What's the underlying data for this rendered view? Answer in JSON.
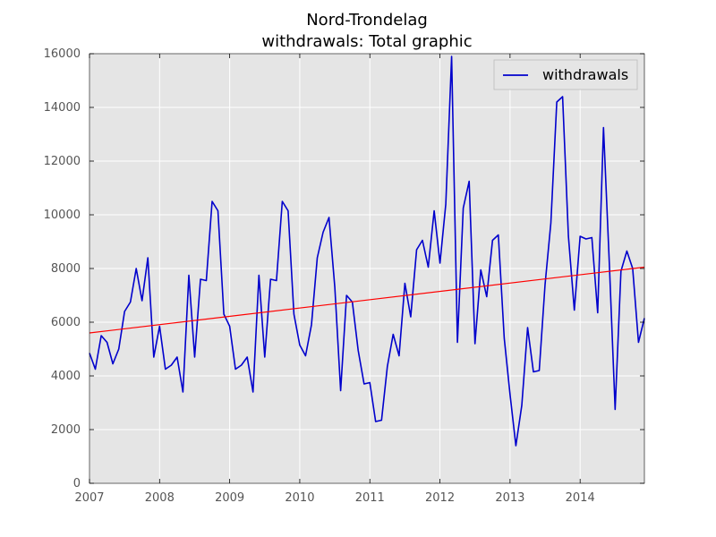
{
  "chart_data": {
    "type": "line",
    "title": "Nord-Trondelag",
    "subtitle": "withdrawals: Total graphic",
    "xlabel": "",
    "ylabel": "",
    "xlim": [
      2007.0,
      2014.917
    ],
    "ylim": [
      0,
      16000
    ],
    "x_ticks": [
      2007,
      2008,
      2009,
      2010,
      2011,
      2012,
      2013,
      2014
    ],
    "y_ticks": [
      0,
      2000,
      4000,
      6000,
      8000,
      10000,
      12000,
      14000,
      16000
    ],
    "grid": true,
    "background": "#e5e5e5",
    "legend": {
      "placement": "top-right",
      "entries": [
        "withdrawals"
      ]
    },
    "series": [
      {
        "name": "withdrawals",
        "color": "#0000cc",
        "x": [
          2007.0,
          2007.083,
          2007.167,
          2007.25,
          2007.333,
          2007.417,
          2007.5,
          2007.583,
          2007.667,
          2007.75,
          2007.833,
          2007.917,
          2008.0,
          2008.083,
          2008.167,
          2008.25,
          2008.333,
          2008.417,
          2008.5,
          2008.583,
          2008.667,
          2008.75,
          2008.833,
          2008.917,
          2009.0,
          2009.083,
          2009.167,
          2009.25,
          2009.333,
          2009.417,
          2009.5,
          2009.583,
          2009.667,
          2009.75,
          2009.833,
          2009.917,
          2010.0,
          2010.083,
          2010.167,
          2010.25,
          2010.333,
          2010.417,
          2010.5,
          2010.583,
          2010.667,
          2010.75,
          2010.833,
          2010.917,
          2011.0,
          2011.083,
          2011.167,
          2011.25,
          2011.333,
          2011.417,
          2011.5,
          2011.583,
          2011.667,
          2011.75,
          2011.833,
          2011.917,
          2012.0,
          2012.083,
          2012.167,
          2012.25,
          2012.333,
          2012.417,
          2012.5,
          2012.583,
          2012.667,
          2012.75,
          2012.833,
          2012.917,
          2013.0,
          2013.083,
          2013.167,
          2013.25,
          2013.333,
          2013.417,
          2013.5,
          2013.583,
          2013.667,
          2013.75,
          2013.833,
          2013.917,
          2014.0,
          2014.083,
          2014.167,
          2014.25,
          2014.333,
          2014.417,
          2014.5,
          2014.583,
          2014.667,
          2014.75,
          2014.833,
          2014.917
        ],
        "y": [
          4850,
          4250,
          5500,
          5250,
          4450,
          5000,
          6400,
          6750,
          8000,
          6800,
          8400,
          4700,
          5850,
          4250,
          4400,
          4700,
          3400,
          7750,
          4700,
          7600,
          7550,
          10500,
          10150,
          6300,
          5850,
          4250,
          4400,
          4700,
          3400,
          7750,
          4700,
          7600,
          7550,
          10500,
          10150,
          6300,
          5150,
          4750,
          5900,
          8400,
          9350,
          9900,
          7300,
          3450,
          7000,
          6750,
          4950,
          3700,
          3750,
          2300,
          2350,
          4350,
          5550,
          4750,
          7450,
          6200,
          8700,
          9050,
          8050,
          10150,
          8200,
          10400,
          15900,
          5250,
          10250,
          11250,
          5200,
          7950,
          6950,
          9050,
          9250,
          5400,
          3300,
          1400,
          2900,
          5800,
          4150,
          4200,
          7400,
          9700,
          14200,
          14400,
          9200,
          6450,
          9200,
          9100,
          9150,
          6350,
          13250,
          8200,
          2750,
          7900,
          8650,
          8000,
          5250,
          6150
        ]
      },
      {
        "name": "",
        "color": "#ff0000",
        "x": [
          2007.0,
          2014.917
        ],
        "y": [
          5600,
          8050
        ]
      }
    ]
  }
}
